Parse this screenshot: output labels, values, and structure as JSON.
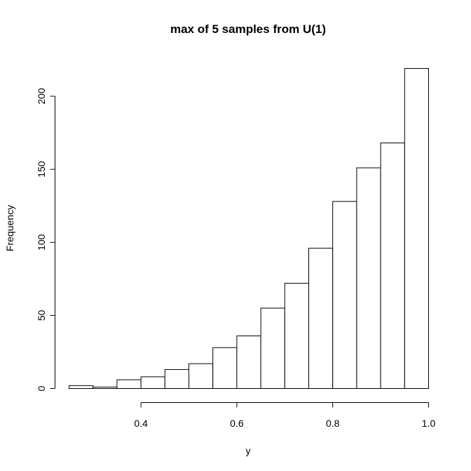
{
  "chart_data": {
    "type": "bar",
    "title": "max of 5 samples from U(1)",
    "xlabel": "y",
    "ylabel": "Frequency",
    "bin_edges": [
      0.25,
      0.3,
      0.35,
      0.4,
      0.45,
      0.5,
      0.55,
      0.6,
      0.65,
      0.7,
      0.75,
      0.8,
      0.85,
      0.9,
      0.95,
      1.0
    ],
    "values": [
      2,
      1,
      6,
      8,
      13,
      17,
      28,
      36,
      55,
      72,
      96,
      128,
      151,
      168,
      219
    ],
    "xlim": [
      0.25,
      1.0
    ],
    "ylim": [
      0,
      219
    ],
    "x_ticks": [
      {
        "value": 0.4,
        "label": "0.4"
      },
      {
        "value": 0.6,
        "label": "0.6"
      },
      {
        "value": 0.8,
        "label": "0.8"
      },
      {
        "value": 1.0,
        "label": "1.0"
      }
    ],
    "y_ticks": [
      {
        "value": 0,
        "label": "0"
      },
      {
        "value": 50,
        "label": "50"
      },
      {
        "value": 100,
        "label": "100"
      },
      {
        "value": 150,
        "label": "150"
      },
      {
        "value": 200,
        "label": "200"
      }
    ],
    "grid": false,
    "legend": "none"
  }
}
